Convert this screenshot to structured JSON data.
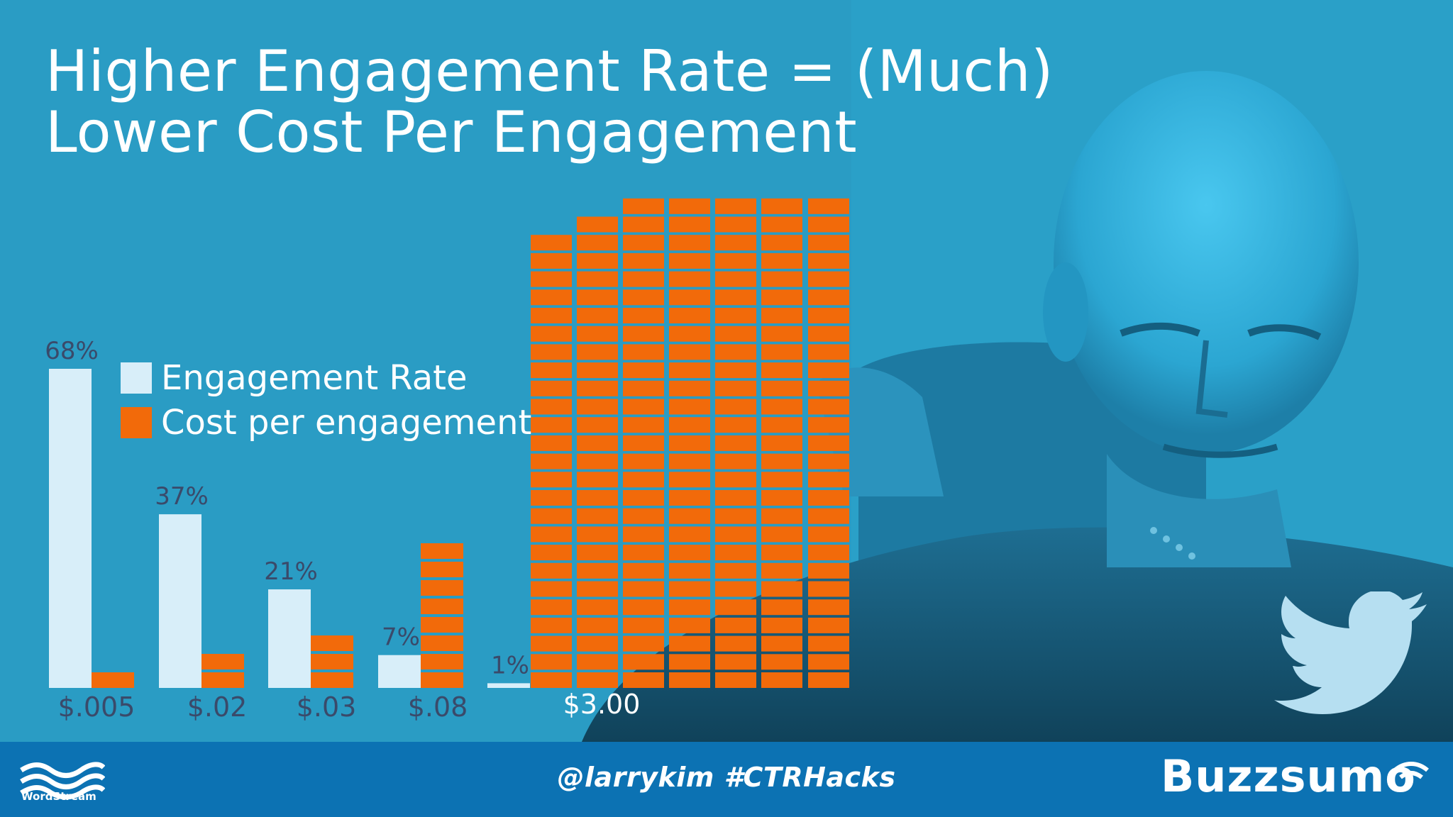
{
  "slide": {
    "title_lines": [
      "Higher Engagement Rate = (Much)",
      "Lower Cost Per Engagement"
    ]
  },
  "chart_data": {
    "type": "bar",
    "categories": [
      "$.005",
      "$.02",
      "$.03",
      "$.08",
      "$3.00"
    ],
    "series": [
      {
        "name": "Engagement Rate",
        "values": [
          68,
          37,
          21,
          7,
          1
        ],
        "labels": [
          "68%",
          "37%",
          "21%",
          "7%",
          "1%"
        ],
        "color": "#d8eef9"
      },
      {
        "name": "Cost per engagement",
        "values": [
          0.005,
          0.02,
          0.03,
          0.08,
          3.0
        ],
        "color": "#f26a0a"
      }
    ],
    "legend_position": "top-left, beside the first bar",
    "axes_visible": false,
    "grid": false
  },
  "legend": {
    "engagement_label": "Engagement Rate",
    "cost_label": "Cost per engagement"
  },
  "colors": {
    "background": "#2a9cc4",
    "footer": "#0c72b3",
    "engagement_bar": "#d8eef9",
    "cost_bar": "#f26a0a",
    "value_label": "#3a4a6a",
    "category_label": "#3a4a6a",
    "highlight_category_label": "#ffffff"
  },
  "footer": {
    "handle": "@larrykim #CTRHacks",
    "left_logo": {
      "name": "WordStream",
      "icon": "wordstream-waves-icon"
    },
    "right_logo": {
      "name": "Buzzsumo",
      "icon": "buzzsumo-wifi-icon"
    }
  },
  "decorations": {
    "background_image": "photo of a bald man in a uniform tinted blue",
    "bird_icon": "twitter-bird-icon"
  }
}
